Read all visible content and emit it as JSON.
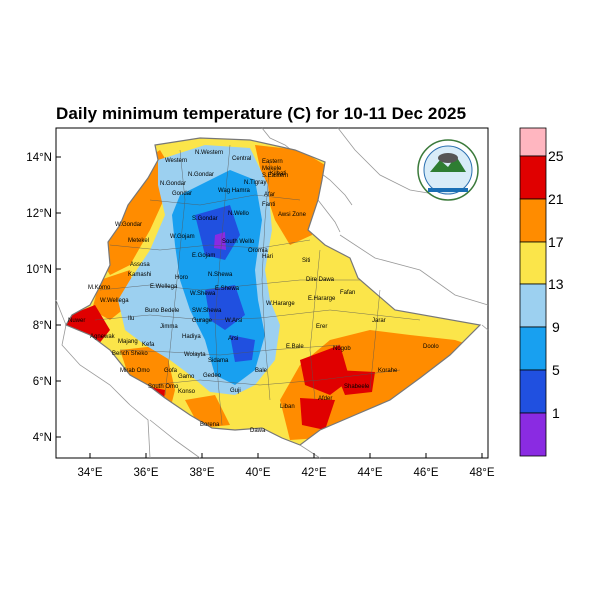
{
  "title": "Daily minimum temperature (C) for 10-11 Dec 2025",
  "map_data": {
    "variable": "Daily minimum temperature",
    "units": "C",
    "lon_range": [
      33,
      48
    ],
    "lat_range": [
      3.2,
      15
    ],
    "x_ticks": [
      "34°E",
      "36°E",
      "38°E",
      "40°E",
      "42°E",
      "44°E",
      "46°E",
      "48°E"
    ],
    "y_ticks": [
      "4°N",
      "6°N",
      "8°N",
      "10°N",
      "12°N",
      "14°N"
    ],
    "colorbar": {
      "labels": [
        "1",
        "5",
        "9",
        "13",
        "17",
        "21",
        "25"
      ],
      "colors": [
        "#8a2be2",
        "#2050e0",
        "#18a0f0",
        "#9cd0f0",
        "#fbe54a",
        "#ff8c00",
        "#e00000",
        "#ffb6c0"
      ]
    },
    "zone_labels": [
      "Western",
      "N.Western",
      "Central",
      "Eastern",
      "Mekele",
      "S.Eastern",
      "Wag Hamra",
      "N.Tigray",
      "Kilbati",
      "N.Gondar",
      "S.Gondar",
      "Gondar",
      "N.Gondar",
      "Afar",
      "Fanti",
      "Awsi Zone",
      "W.Gojam",
      "N.Wello",
      "Metekel",
      "W.Gondar",
      "E.Gojam",
      "South Wello",
      "Oromia",
      "Hari",
      "Assosa",
      "Kamashi",
      "Horo",
      "E.Wellega",
      "N.Shewa",
      "Siti",
      "Dire Dawa",
      "Fafan",
      "M.Komo",
      "W.Wellega",
      "W.Shewa",
      "E.Shewa",
      "W.Hararge",
      "E.Hararge",
      "Nuwer",
      "Agnewak",
      "Jimma",
      "Buno Bedele",
      "Ilu",
      "SW.Shewa",
      "Gurage",
      "Arsi",
      "Jarar",
      "Erer",
      "Bench Sheko",
      "Kefa",
      "Hadiya",
      "Bale",
      "Nogob",
      "Doolo",
      "Majang",
      "Wolayta",
      "Sidama",
      "Gofa",
      "Gamo",
      "Gedeo",
      "Korahe",
      "Shabeele",
      "South Omo",
      "Konso",
      "Guji",
      "Liban",
      "Afder",
      "Borena",
      "Dawa",
      "Mirab Omo",
      "W.Arsi",
      "E.Bale"
    ],
    "logo_text": "Ethiopian Meteorology Institute"
  }
}
